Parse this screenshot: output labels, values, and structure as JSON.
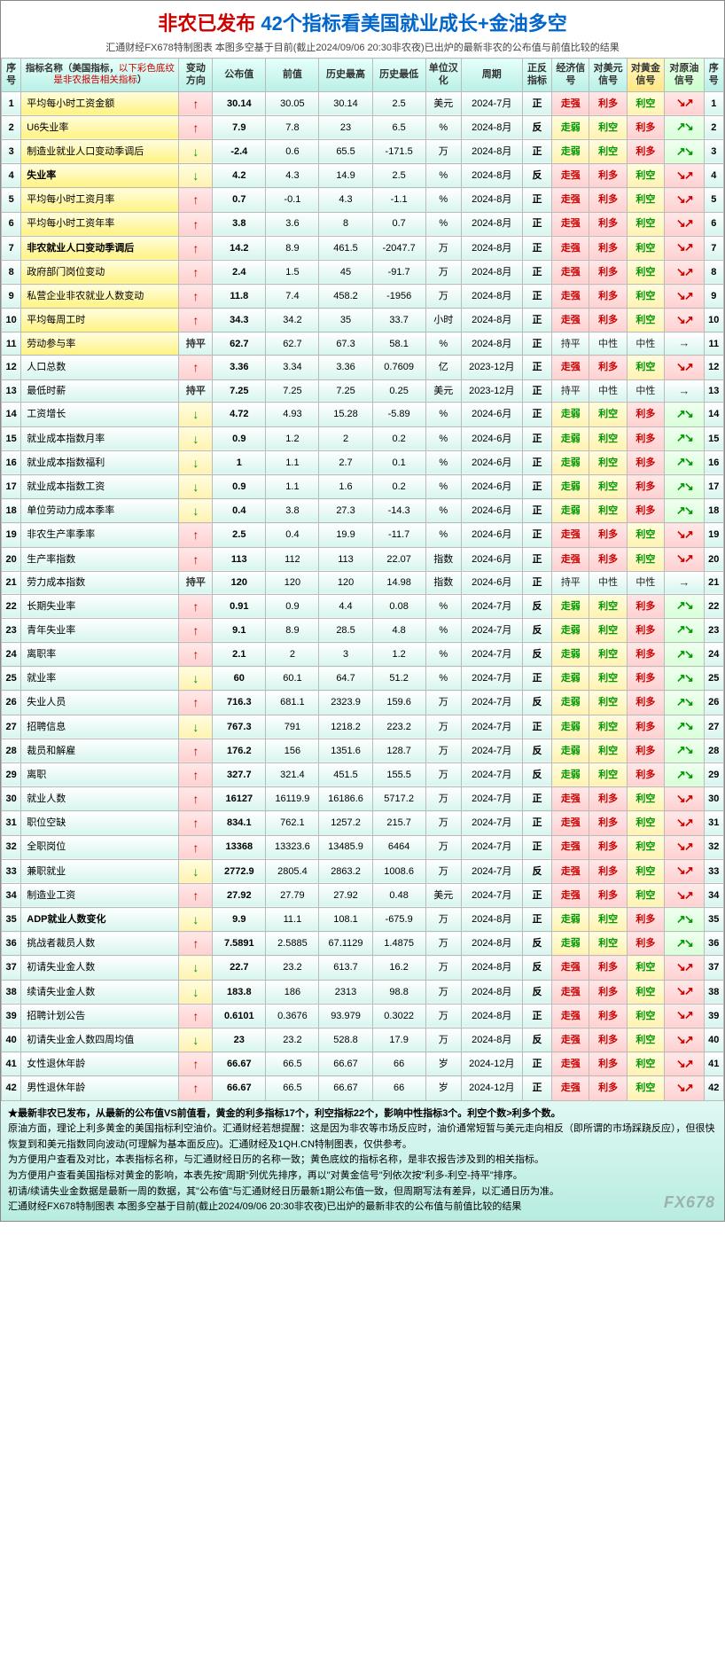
{
  "title": {
    "part1": "非农已发布",
    "part2": "42个指标看美国就业成长+金油多空"
  },
  "subtitle": "汇通财经FX678特制图表 本图多空基于目前(截止2024/09/06 20:30非农夜)已出炉的最新非农的公布值与前值比较的结果",
  "headers": {
    "idx": "序号",
    "name": "指标名称",
    "name_note1": "（美国指标，",
    "name_note2": "以下彩色底纹是非农报告相关指标",
    "name_note3": "）",
    "dir": "变动方向",
    "pub": "公布值",
    "prev": "前值",
    "high": "历史最高",
    "low": "历史最低",
    "unit": "单位汉化",
    "period": "周期",
    "zf": "正反指标",
    "econ": "经济信号",
    "usd": "对美元信号",
    "gold": "对黄金信号",
    "oil": "对原油信号",
    "idx2": "序号"
  },
  "colors": {
    "teal_grad": [
      "#ffffff",
      "#d6f5ee"
    ],
    "pink_grad": [
      "#ffe8e8",
      "#ffd0d0"
    ],
    "yellow_grad": [
      "#fffde0",
      "#fff2b0"
    ],
    "lgreen_grad": [
      "#f0fff0",
      "#d8ffd8"
    ],
    "highlight_grad": [
      "#fffde0",
      "#fff380"
    ],
    "header_grad": [
      "#e6fffa",
      "#b8f0e6"
    ],
    "red": "#cc0000",
    "green": "#009900",
    "blue": "#0066cc"
  },
  "glyphs": {
    "up": "↑",
    "down": "↓",
    "flat": "持平"
  },
  "signals": {
    "zq": "走强",
    "zr": "走弱",
    "cp": "持平",
    "ld": "利多",
    "lk": "利空",
    "zx": "中性",
    "zheng": "正",
    "fan": "反"
  },
  "rows": [
    {
      "n": 1,
      "name": "平均每小时工资金额",
      "hl": true,
      "dir": "up",
      "pub": "30.14",
      "prev": "30.05",
      "high": "30.14",
      "low": "2.5",
      "unit": "美元",
      "period": "2024-7月",
      "zf": "正",
      "econ": "zq",
      "usd": "ld",
      "gold": "lk",
      "oil": "dnred"
    },
    {
      "n": 2,
      "name": "U6失业率",
      "hl": true,
      "dir": "up",
      "pub": "7.9",
      "prev": "7.8",
      "high": "23",
      "low": "6.5",
      "unit": "%",
      "period": "2024-8月",
      "zf": "反",
      "econ": "zr",
      "usd": "lk",
      "gold": "ld",
      "oil": "upgreen"
    },
    {
      "n": 3,
      "name": "制造业就业人口变动季调后",
      "hl": true,
      "dir": "down",
      "pub": "-2.4",
      "prev": "0.6",
      "high": "65.5",
      "low": "-171.5",
      "unit": "万",
      "period": "2024-8月",
      "zf": "正",
      "econ": "zr",
      "usd": "lk",
      "gold": "ld",
      "oil": "upgreen"
    },
    {
      "n": 4,
      "name": "失业率",
      "hl": true,
      "bold": true,
      "dir": "down",
      "pub": "4.2",
      "prev": "4.3",
      "high": "14.9",
      "low": "2.5",
      "unit": "%",
      "period": "2024-8月",
      "zf": "反",
      "econ": "zq",
      "usd": "ld",
      "gold": "lk",
      "oil": "dnred"
    },
    {
      "n": 5,
      "name": "平均每小时工资月率",
      "hl": true,
      "dir": "up",
      "pub": "0.7",
      "prev": "-0.1",
      "high": "4.3",
      "low": "-1.1",
      "unit": "%",
      "period": "2024-8月",
      "zf": "正",
      "econ": "zq",
      "usd": "ld",
      "gold": "lk",
      "oil": "dnred"
    },
    {
      "n": 6,
      "name": "平均每小时工资年率",
      "hl": true,
      "dir": "up",
      "pub": "3.8",
      "prev": "3.6",
      "high": "8",
      "low": "0.7",
      "unit": "%",
      "period": "2024-8月",
      "zf": "正",
      "econ": "zq",
      "usd": "ld",
      "gold": "lk",
      "oil": "dnred"
    },
    {
      "n": 7,
      "name": "非农就业人口变动季调后",
      "hl": true,
      "bold": true,
      "dir": "up",
      "pub": "14.2",
      "prev": "8.9",
      "high": "461.5",
      "low": "-2047.7",
      "unit": "万",
      "period": "2024-8月",
      "zf": "正",
      "econ": "zq",
      "usd": "ld",
      "gold": "lk",
      "oil": "dnred"
    },
    {
      "n": 8,
      "name": "政府部门岗位变动",
      "hl": true,
      "dir": "up",
      "pub": "2.4",
      "prev": "1.5",
      "high": "45",
      "low": "-91.7",
      "unit": "万",
      "period": "2024-8月",
      "zf": "正",
      "econ": "zq",
      "usd": "ld",
      "gold": "lk",
      "oil": "dnred"
    },
    {
      "n": 9,
      "name": "私营企业非农就业人数变动",
      "hl": true,
      "dir": "up",
      "pub": "11.8",
      "prev": "7.4",
      "high": "458.2",
      "low": "-1956",
      "unit": "万",
      "period": "2024-8月",
      "zf": "正",
      "econ": "zq",
      "usd": "ld",
      "gold": "lk",
      "oil": "dnred"
    },
    {
      "n": 10,
      "name": "平均每周工时",
      "hl": true,
      "dir": "up",
      "pub": "34.3",
      "prev": "34.2",
      "high": "35",
      "low": "33.7",
      "unit": "小时",
      "period": "2024-8月",
      "zf": "正",
      "econ": "zq",
      "usd": "ld",
      "gold": "lk",
      "oil": "dnred"
    },
    {
      "n": 11,
      "name": "劳动参与率",
      "hl": true,
      "dir": "flat",
      "pub": "62.7",
      "prev": "62.7",
      "high": "67.3",
      "low": "58.1",
      "unit": "%",
      "period": "2024-8月",
      "zf": "正",
      "econ": "cp",
      "usd": "zx",
      "gold": "zx",
      "oil": "flat"
    },
    {
      "n": 12,
      "name": "人口总数",
      "dir": "up",
      "pub": "3.36",
      "prev": "3.34",
      "high": "3.36",
      "low": "0.7609",
      "unit": "亿",
      "period": "2023-12月",
      "zf": "正",
      "econ": "zq",
      "usd": "ld",
      "gold": "lk",
      "oil": "dnred"
    },
    {
      "n": 13,
      "name": "最低时薪",
      "dir": "flat",
      "pub": "7.25",
      "prev": "7.25",
      "high": "7.25",
      "low": "0.25",
      "unit": "美元",
      "period": "2023-12月",
      "zf": "正",
      "econ": "cp",
      "usd": "zx",
      "gold": "zx",
      "oil": "flat"
    },
    {
      "n": 14,
      "name": "工资增长",
      "dir": "down",
      "pub": "4.72",
      "prev": "4.93",
      "high": "15.28",
      "low": "-5.89",
      "unit": "%",
      "period": "2024-6月",
      "zf": "正",
      "econ": "zr",
      "usd": "lk",
      "gold": "ld",
      "oil": "upgreen"
    },
    {
      "n": 15,
      "name": "就业成本指数月率",
      "dir": "down",
      "pub": "0.9",
      "prev": "1.2",
      "high": "2",
      "low": "0.2",
      "unit": "%",
      "period": "2024-6月",
      "zf": "正",
      "econ": "zr",
      "usd": "lk",
      "gold": "ld",
      "oil": "upgreen"
    },
    {
      "n": 16,
      "name": "就业成本指数福利",
      "dir": "down",
      "pub": "1",
      "prev": "1.1",
      "high": "2.7",
      "low": "0.1",
      "unit": "%",
      "period": "2024-6月",
      "zf": "正",
      "econ": "zr",
      "usd": "lk",
      "gold": "ld",
      "oil": "upgreen"
    },
    {
      "n": 17,
      "name": "就业成本指数工资",
      "dir": "down",
      "pub": "0.9",
      "prev": "1.1",
      "high": "1.6",
      "low": "0.2",
      "unit": "%",
      "period": "2024-6月",
      "zf": "正",
      "econ": "zr",
      "usd": "lk",
      "gold": "ld",
      "oil": "upgreen"
    },
    {
      "n": 18,
      "name": "单位劳动力成本季率",
      "dir": "down",
      "pub": "0.4",
      "prev": "3.8",
      "high": "27.3",
      "low": "-14.3",
      "unit": "%",
      "period": "2024-6月",
      "zf": "正",
      "econ": "zr",
      "usd": "lk",
      "gold": "ld",
      "oil": "upgreen"
    },
    {
      "n": 19,
      "name": "非农生产率季率",
      "dir": "up",
      "pub": "2.5",
      "prev": "0.4",
      "high": "19.9",
      "low": "-11.7",
      "unit": "%",
      "period": "2024-6月",
      "zf": "正",
      "econ": "zq",
      "usd": "ld",
      "gold": "lk",
      "oil": "dnred"
    },
    {
      "n": 20,
      "name": "生产率指数",
      "dir": "up",
      "pub": "113",
      "prev": "112",
      "high": "113",
      "low": "22.07",
      "unit": "指数",
      "period": "2024-6月",
      "zf": "正",
      "econ": "zq",
      "usd": "ld",
      "gold": "lk",
      "oil": "dnred"
    },
    {
      "n": 21,
      "name": "劳力成本指数",
      "dir": "flat",
      "pub": "120",
      "prev": "120",
      "high": "120",
      "low": "14.98",
      "unit": "指数",
      "period": "2024-6月",
      "zf": "正",
      "econ": "cp",
      "usd": "zx",
      "gold": "zx",
      "oil": "flat"
    },
    {
      "n": 22,
      "name": "长期失业率",
      "dir": "up",
      "pub": "0.91",
      "prev": "0.9",
      "high": "4.4",
      "low": "0.08",
      "unit": "%",
      "period": "2024-7月",
      "zf": "反",
      "econ": "zr",
      "usd": "lk",
      "gold": "ld",
      "oil": "upgreen"
    },
    {
      "n": 23,
      "name": "青年失业率",
      "dir": "up",
      "pub": "9.1",
      "prev": "8.9",
      "high": "28.5",
      "low": "4.8",
      "unit": "%",
      "period": "2024-7月",
      "zf": "反",
      "econ": "zr",
      "usd": "lk",
      "gold": "ld",
      "oil": "upgreen"
    },
    {
      "n": 24,
      "name": "离职率",
      "dir": "up",
      "pub": "2.1",
      "prev": "2",
      "high": "3",
      "low": "1.2",
      "unit": "%",
      "period": "2024-7月",
      "zf": "反",
      "econ": "zr",
      "usd": "lk",
      "gold": "ld",
      "oil": "upgreen"
    },
    {
      "n": 25,
      "name": "就业率",
      "dir": "down",
      "pub": "60",
      "prev": "60.1",
      "high": "64.7",
      "low": "51.2",
      "unit": "%",
      "period": "2024-7月",
      "zf": "正",
      "econ": "zr",
      "usd": "lk",
      "gold": "ld",
      "oil": "upgreen"
    },
    {
      "n": 26,
      "name": "失业人员",
      "dir": "up",
      "pub": "716.3",
      "prev": "681.1",
      "high": "2323.9",
      "low": "159.6",
      "unit": "万",
      "period": "2024-7月",
      "zf": "反",
      "econ": "zr",
      "usd": "lk",
      "gold": "ld",
      "oil": "upgreen"
    },
    {
      "n": 27,
      "name": "招聘信息",
      "dir": "down",
      "pub": "767.3",
      "prev": "791",
      "high": "1218.2",
      "low": "223.2",
      "unit": "万",
      "period": "2024-7月",
      "zf": "正",
      "econ": "zr",
      "usd": "lk",
      "gold": "ld",
      "oil": "upgreen"
    },
    {
      "n": 28,
      "name": "裁员和解雇",
      "dir": "up",
      "pub": "176.2",
      "prev": "156",
      "high": "1351.6",
      "low": "128.7",
      "unit": "万",
      "period": "2024-7月",
      "zf": "反",
      "econ": "zr",
      "usd": "lk",
      "gold": "ld",
      "oil": "upgreen"
    },
    {
      "n": 29,
      "name": "离职",
      "dir": "up",
      "pub": "327.7",
      "prev": "321.4",
      "high": "451.5",
      "low": "155.5",
      "unit": "万",
      "period": "2024-7月",
      "zf": "反",
      "econ": "zr",
      "usd": "lk",
      "gold": "ld",
      "oil": "upgreen"
    },
    {
      "n": 30,
      "name": "就业人数",
      "dir": "up",
      "pub": "16127",
      "prev": "16119.9",
      "high": "16186.6",
      "low": "5717.2",
      "unit": "万",
      "period": "2024-7月",
      "zf": "正",
      "econ": "zq",
      "usd": "ld",
      "gold": "lk",
      "oil": "dnred"
    },
    {
      "n": 31,
      "name": "职位空缺",
      "dir": "up",
      "pub": "834.1",
      "prev": "762.1",
      "high": "1257.2",
      "low": "215.7",
      "unit": "万",
      "period": "2024-7月",
      "zf": "正",
      "econ": "zq",
      "usd": "ld",
      "gold": "lk",
      "oil": "dnred"
    },
    {
      "n": 32,
      "name": "全职岗位",
      "dir": "up",
      "pub": "13368",
      "prev": "13323.6",
      "high": "13485.9",
      "low": "6464",
      "unit": "万",
      "period": "2024-7月",
      "zf": "正",
      "econ": "zq",
      "usd": "ld",
      "gold": "lk",
      "oil": "dnred"
    },
    {
      "n": 33,
      "name": "兼职就业",
      "dir": "down",
      "pub": "2772.9",
      "prev": "2805.4",
      "high": "2863.2",
      "low": "1008.6",
      "unit": "万",
      "period": "2024-7月",
      "zf": "反",
      "econ": "zq",
      "usd": "ld",
      "gold": "lk",
      "oil": "dnred"
    },
    {
      "n": 34,
      "name": "制造业工资",
      "dir": "up",
      "pub": "27.92",
      "prev": "27.79",
      "high": "27.92",
      "low": "0.48",
      "unit": "美元",
      "period": "2024-7月",
      "zf": "正",
      "econ": "zq",
      "usd": "ld",
      "gold": "lk",
      "oil": "dnred"
    },
    {
      "n": 35,
      "name": "ADP就业人数变化",
      "bold": true,
      "dir": "down",
      "pub": "9.9",
      "prev": "11.1",
      "high": "108.1",
      "low": "-675.9",
      "unit": "万",
      "period": "2024-8月",
      "zf": "正",
      "econ": "zr",
      "usd": "lk",
      "gold": "ld",
      "oil": "upgreen"
    },
    {
      "n": 36,
      "name": "挑战者裁员人数",
      "dir": "up",
      "pub": "7.5891",
      "prev": "2.5885",
      "high": "67.1129",
      "low": "1.4875",
      "unit": "万",
      "period": "2024-8月",
      "zf": "反",
      "econ": "zr",
      "usd": "lk",
      "gold": "ld",
      "oil": "upgreen"
    },
    {
      "n": 37,
      "name": "初请失业金人数",
      "dir": "down",
      "pub": "22.7",
      "prev": "23.2",
      "high": "613.7",
      "low": "16.2",
      "unit": "万",
      "period": "2024-8月",
      "zf": "反",
      "econ": "zq",
      "usd": "ld",
      "gold": "lk",
      "oil": "dnred"
    },
    {
      "n": 38,
      "name": "续请失业金人数",
      "dir": "down",
      "pub": "183.8",
      "prev": "186",
      "high": "2313",
      "low": "98.8",
      "unit": "万",
      "period": "2024-8月",
      "zf": "反",
      "econ": "zq",
      "usd": "ld",
      "gold": "lk",
      "oil": "dnred"
    },
    {
      "n": 39,
      "name": "招聘计划公告",
      "dir": "up",
      "pub": "0.6101",
      "prev": "0.3676",
      "high": "93.979",
      "low": "0.3022",
      "unit": "万",
      "period": "2024-8月",
      "zf": "正",
      "econ": "zq",
      "usd": "ld",
      "gold": "lk",
      "oil": "dnred"
    },
    {
      "n": 40,
      "name": "初请失业金人数四周均值",
      "dir": "down",
      "pub": "23",
      "prev": "23.2",
      "high": "528.8",
      "low": "17.9",
      "unit": "万",
      "period": "2024-8月",
      "zf": "反",
      "econ": "zq",
      "usd": "ld",
      "gold": "lk",
      "oil": "dnred"
    },
    {
      "n": 41,
      "name": "女性退休年龄",
      "dir": "up",
      "pub": "66.67",
      "prev": "66.5",
      "high": "66.67",
      "low": "66",
      "unit": "岁",
      "period": "2024-12月",
      "zf": "正",
      "econ": "zq",
      "usd": "ld",
      "gold": "lk",
      "oil": "dnred"
    },
    {
      "n": 42,
      "name": "男性退休年龄",
      "dir": "up",
      "pub": "66.67",
      "prev": "66.5",
      "high": "66.67",
      "low": "66",
      "unit": "岁",
      "period": "2024-12月",
      "zf": "正",
      "econ": "zq",
      "usd": "ld",
      "gold": "lk",
      "oil": "dnred"
    }
  ],
  "footer": {
    "l1": "★最新非农已发布，从最新的公布值VS前值看，黄金的利多指标17个，利空指标22个，影响中性指标3个。利空个数>利多个数。",
    "l2": "原油方面，理论上利多黄金的美国指标利空油价。汇通财经若想提醒：这是因为非农等市场反应时，油价通常短暂与美元走向相反（即所谓的市场踩跷反应），但很快恢复到和美元指数同向波动(可理解为基本面反应)。汇通财经及1QH.CN特制图表，仅供参考。",
    "l3": "为方便用户查看及对比，本表指标名称，与汇通财经日历的名称一致；黄色底纹的指标名称，是非农报告涉及到的相关指标。",
    "l4": "为方便用户查看美国指标对黄金的影响，本表先按\"周期\"列优先排序，再以\"对黄金信号\"列依次按\"利多-利空-持平\"排序。",
    "l5": "初请/续请失业金数据是最新一周的数据，其\"公布值\"与汇通财经日历最新1期公布值一致，但周期写法有差异，以汇通日历为准。",
    "l6": "汇通财经FX678特制图表 本图多空基于目前(截止2024/09/06 20:30非农夜)已出炉的最新非农的公布值与前值比较的结果",
    "watermark": "FX678"
  }
}
